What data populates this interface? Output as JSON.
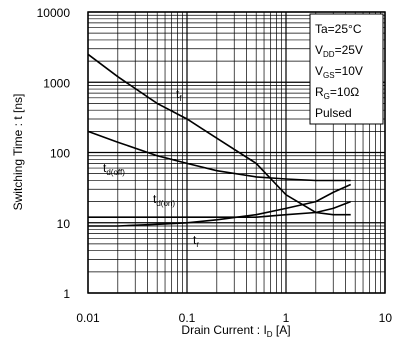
{
  "chart_data": {
    "type": "line",
    "xlabel": {
      "main": "Drain Current : I",
      "sub": "D",
      "tail": " [A]"
    },
    "ylabel": "Switching Time : t [ns]",
    "x": [
      0.01,
      0.02,
      0.05,
      0.1,
      0.2,
      0.5,
      1,
      2,
      3,
      4.5
    ],
    "series": [
      {
        "name": "t",
        "name_sub": "f",
        "color": "#000000",
        "values": [
          2500,
          1200,
          500,
          300,
          160,
          70,
          25,
          14,
          13,
          13
        ]
      },
      {
        "name": "t",
        "name_sub": "d(off)",
        "color": "#000000",
        "values": [
          200,
          140,
          90,
          70,
          55,
          45,
          42,
          40,
          40,
          40
        ]
      },
      {
        "name": "t",
        "name_sub": "d(on)",
        "color": "#000000",
        "values": [
          12,
          12,
          12,
          12,
          12,
          12,
          13,
          14,
          16,
          20
        ]
      },
      {
        "name": "t",
        "name_sub": "r",
        "color": "#000000",
        "values": [
          9,
          9,
          9.5,
          10,
          11,
          13,
          16,
          20,
          27,
          35
        ]
      }
    ],
    "xlim": [
      0.01,
      10
    ],
    "ylim": [
      1,
      10000
    ],
    "xticks": [
      0.01,
      0.1,
      1,
      10
    ],
    "yticks": [
      1,
      10,
      100,
      1000,
      10000
    ],
    "xlog": true,
    "ylog": true,
    "grid": true,
    "conditions": [
      {
        "main": "Ta=25°C"
      },
      {
        "main": "V",
        "sub": "DD",
        "tail": "=25V"
      },
      {
        "main": "V",
        "sub": "GS",
        "tail": "=10V"
      },
      {
        "main": "R",
        "sub": "G",
        "tail": "=10Ω"
      },
      {
        "main": "Pulsed"
      }
    ]
  }
}
